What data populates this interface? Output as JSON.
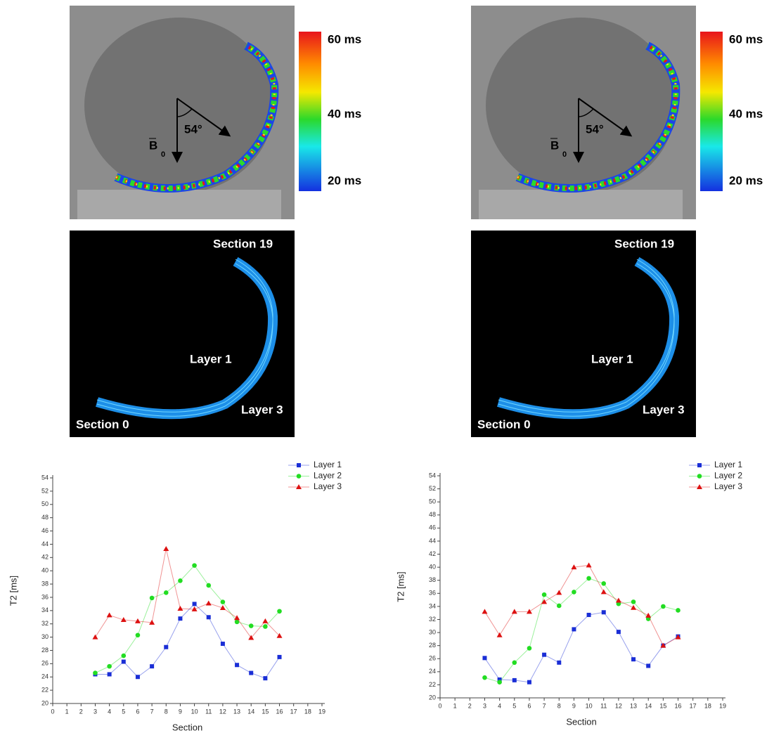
{
  "panels": [
    {
      "colorbar_labels": [
        "60 ms",
        "40 ms",
        "20 ms"
      ],
      "angle_label": "54°",
      "field_label": "B",
      "field_subscript": "0",
      "seg_labels": [
        "Section 19",
        "Layer 1",
        "Layer 3",
        "Section 0"
      ]
    },
    {
      "colorbar_labels": [
        "60 ms",
        "40 ms",
        "20 ms"
      ],
      "angle_label": "54°",
      "field_label": "B",
      "field_subscript": "0",
      "seg_labels": [
        "Section 19",
        "Layer 1",
        "Layer 3",
        "Section 0"
      ]
    }
  ],
  "chart_data": [
    {
      "type": "line",
      "x_label": "Section",
      "y_label": "T2 [ms]",
      "xlim": [
        0,
        19
      ],
      "ylim": [
        20,
        54
      ],
      "xticks": [
        0,
        1,
        2,
        3,
        4,
        5,
        6,
        7,
        8,
        9,
        10,
        11,
        12,
        13,
        14,
        15,
        16,
        17,
        18,
        19
      ],
      "yticks": [
        20,
        22,
        24,
        26,
        28,
        30,
        32,
        34,
        36,
        38,
        40,
        42,
        44,
        46,
        48,
        50,
        52,
        54
      ],
      "legend": "top-right",
      "x": [
        3,
        4,
        5,
        6,
        7,
        8,
        9,
        10,
        11,
        12,
        13,
        14,
        15,
        16
      ],
      "series": [
        {
          "name": "Layer 1",
          "color": "#1a2ed6",
          "marker": "square",
          "values": [
            24.4,
            24.4,
            26.3,
            24.0,
            25.6,
            28.5,
            32.8,
            35.0,
            33.0,
            29.0,
            25.8,
            24.6,
            23.8,
            27.0
          ]
        },
        {
          "name": "Layer 2",
          "color": "#22dd22",
          "marker": "circle",
          "values": [
            24.6,
            25.6,
            27.2,
            30.3,
            35.9,
            36.7,
            38.5,
            40.8,
            37.8,
            35.3,
            32.3,
            31.7,
            31.6,
            33.9
          ]
        },
        {
          "name": "Layer 3",
          "color": "#dd1111",
          "marker": "triangle",
          "values": [
            30.0,
            33.3,
            32.6,
            32.4,
            32.2,
            43.3,
            34.3,
            34.2,
            35.1,
            34.4,
            32.9,
            29.9,
            32.4,
            30.2
          ]
        }
      ]
    },
    {
      "type": "line",
      "x_label": "Section",
      "y_label": "T2 [ms]",
      "xlim": [
        0,
        19
      ],
      "ylim": [
        20,
        54
      ],
      "xticks": [
        0,
        1,
        2,
        3,
        4,
        5,
        6,
        7,
        8,
        9,
        10,
        11,
        12,
        13,
        14,
        15,
        16,
        17,
        18,
        19
      ],
      "yticks": [
        20,
        22,
        24,
        26,
        28,
        30,
        32,
        34,
        36,
        38,
        40,
        42,
        44,
        46,
        48,
        50,
        52,
        54
      ],
      "legend": "top-right",
      "x": [
        3,
        4,
        5,
        6,
        7,
        8,
        9,
        10,
        11,
        12,
        13,
        14,
        15,
        16
      ],
      "series": [
        {
          "name": "Layer 1",
          "color": "#1a2ed6",
          "marker": "square",
          "values": [
            26.1,
            22.8,
            22.7,
            22.4,
            26.6,
            25.4,
            30.5,
            32.7,
            33.1,
            30.1,
            25.9,
            24.9,
            28.0,
            29.4
          ]
        },
        {
          "name": "Layer 2",
          "color": "#22dd22",
          "marker": "circle",
          "values": [
            23.1,
            22.4,
            25.4,
            27.6,
            35.8,
            34.1,
            36.2,
            38.3,
            37.5,
            34.4,
            34.7,
            32.1,
            34.0,
            33.4
          ]
        },
        {
          "name": "Layer 3",
          "color": "#dd1111",
          "marker": "triangle",
          "values": [
            33.2,
            29.6,
            33.2,
            33.2,
            34.7,
            36.1,
            40.0,
            40.3,
            36.2,
            34.9,
            33.8,
            32.6,
            28.0,
            29.3
          ]
        }
      ]
    }
  ]
}
